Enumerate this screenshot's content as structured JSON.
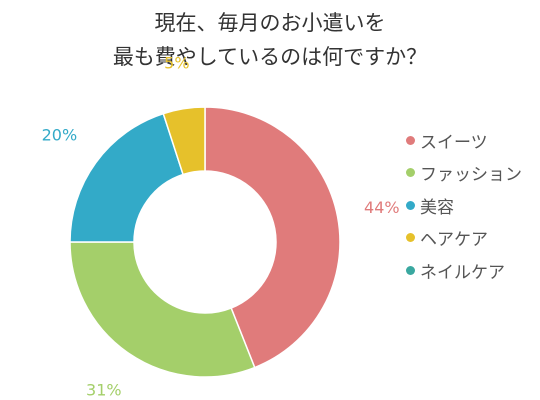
{
  "title_line1": "現在、毎月のお小遣いを",
  "title_line2": "最も費やしているのは何ですか？",
  "chart_data": {
    "type": "pie",
    "donut": true,
    "categories": [
      "スイーツ",
      "ファッション",
      "美容",
      "ヘアケア",
      "ネイルケア"
    ],
    "values": [
      44,
      31,
      20,
      5,
      0
    ],
    "data_labels": [
      "44%",
      "31%",
      "20%",
      "5%",
      ""
    ],
    "colors": [
      "#e07b7b",
      "#a4cf6a",
      "#33aac8",
      "#e6c12b",
      "#3aa8a0"
    ],
    "legend_placement": "right"
  }
}
